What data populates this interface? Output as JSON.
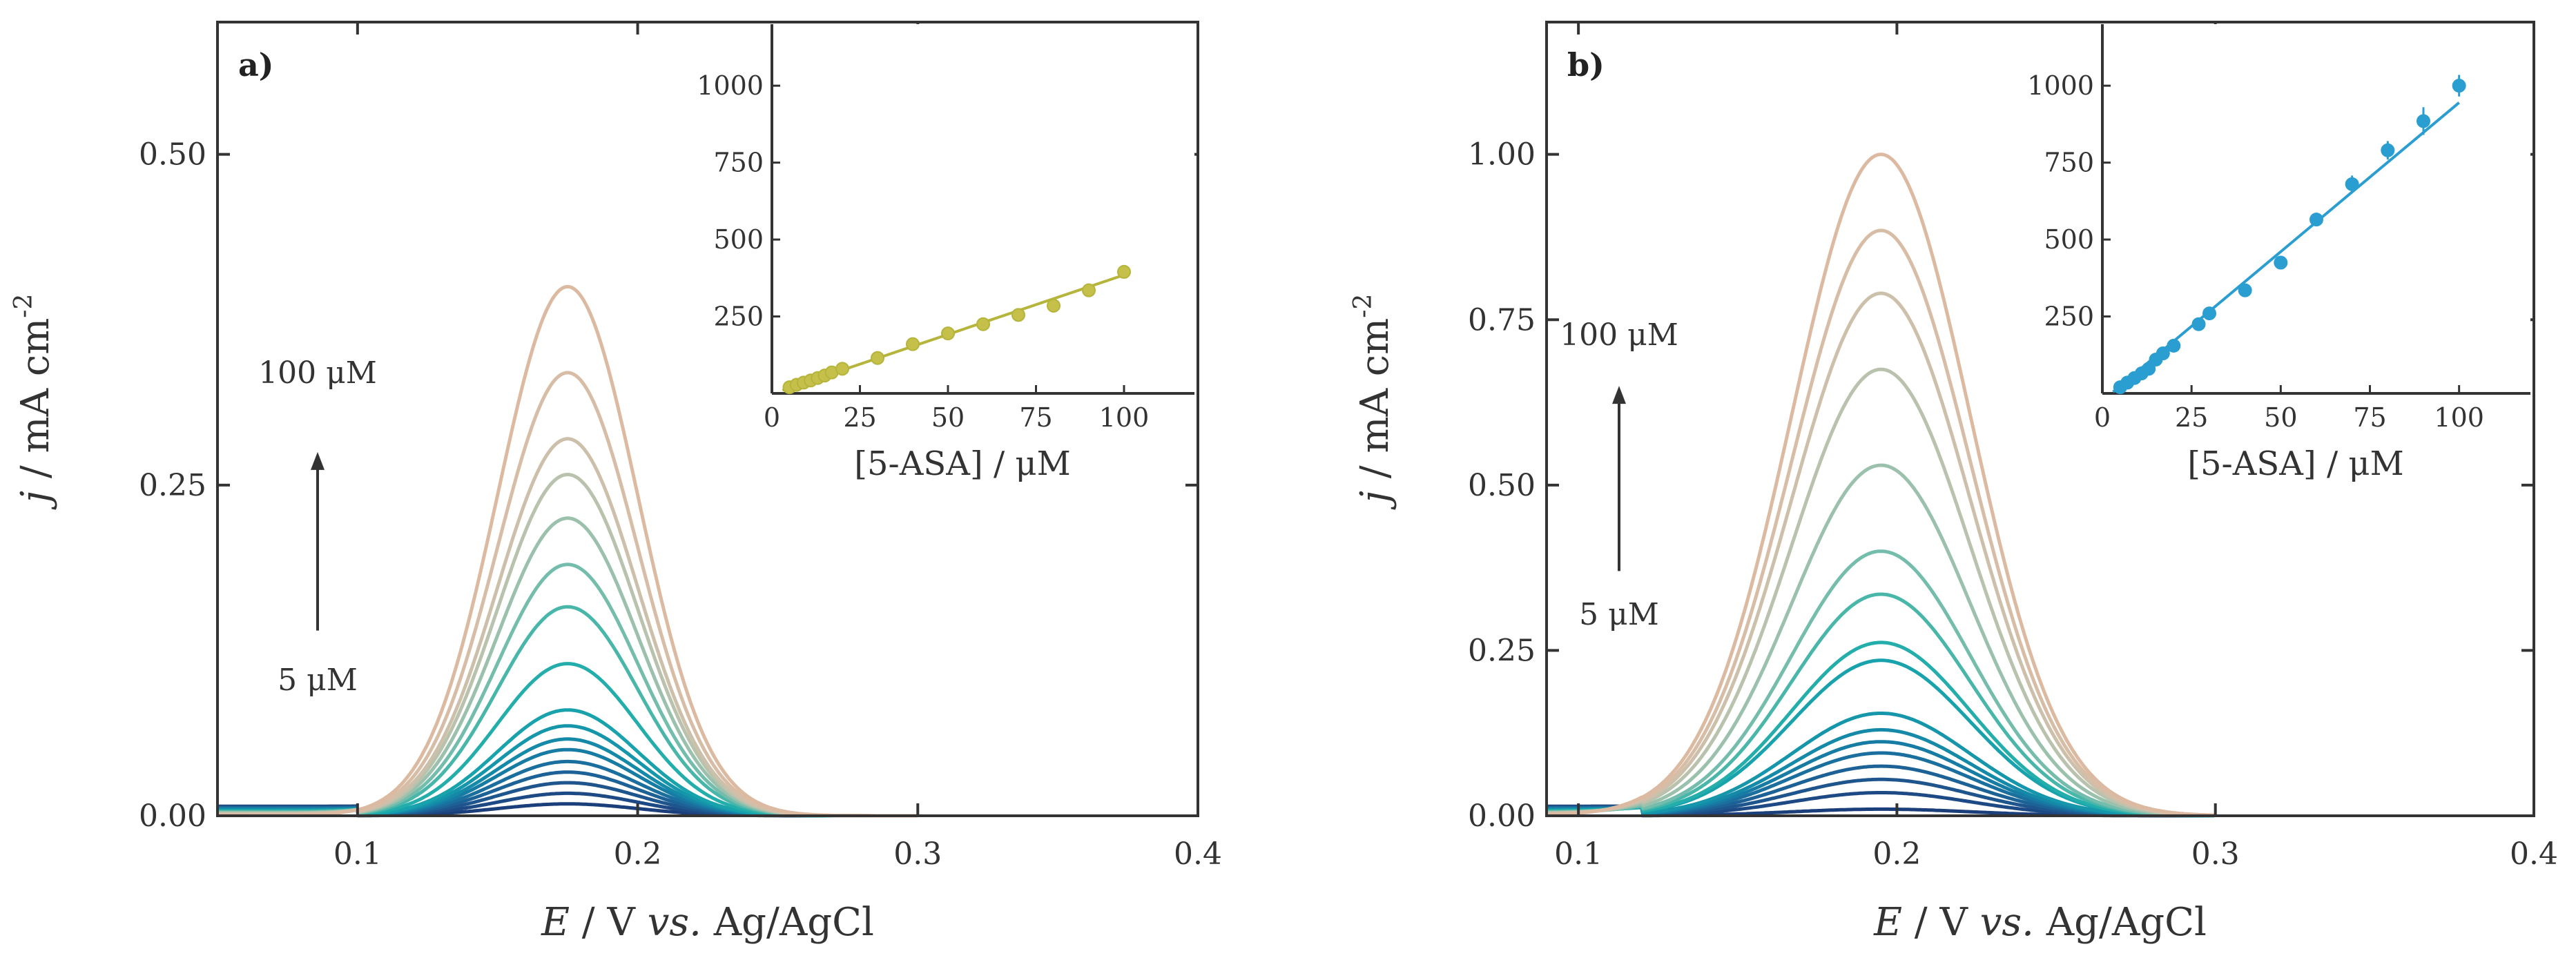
{
  "chart_data": [
    {
      "type": "line",
      "panel_label": "a)",
      "xlabel_parts": [
        "E",
        " / V ",
        "vs.",
        " Ag/AgCl"
      ],
      "ylabel_parts": [
        "j",
        " / mA cm",
        "-2"
      ],
      "xlim": [
        0.05,
        0.4
      ],
      "ylim": [
        0,
        0.6
      ],
      "xticks": [
        0.1,
        0.2,
        0.3,
        0.4
      ],
      "xtick_labels": [
        "0.1",
        "0.2",
        "0.3",
        "0.4"
      ],
      "yticks": [
        0,
        0.25,
        0.5
      ],
      "ytick_labels": [
        "0.00",
        "0.25",
        "0.50"
      ],
      "peak_x": 0.175,
      "peak_sigma": 0.025,
      "onset_x": 0.1,
      "series": [
        {
          "peak": 0.009,
          "color": "#1b3f7a"
        },
        {
          "peak": 0.017,
          "color": "#1d4a84"
        },
        {
          "peak": 0.025,
          "color": "#1e558d"
        },
        {
          "peak": 0.033,
          "color": "#1d6296"
        },
        {
          "peak": 0.041,
          "color": "#1a6f9e"
        },
        {
          "peak": 0.05,
          "color": "#177ca4"
        },
        {
          "peak": 0.058,
          "color": "#1589a8"
        },
        {
          "peak": 0.068,
          "color": "#1596ab"
        },
        {
          "peak": 0.08,
          "color": "#18a2ac"
        },
        {
          "peak": 0.115,
          "color": "#23aeab"
        },
        {
          "peak": 0.158,
          "color": "#49b6aa"
        },
        {
          "peak": 0.19,
          "color": "#74bdac"
        },
        {
          "peak": 0.225,
          "color": "#9bc1ad"
        },
        {
          "peak": 0.258,
          "color": "#b9c2ad"
        },
        {
          "peak": 0.285,
          "color": "#cdc0aa"
        },
        {
          "peak": 0.335,
          "color": "#d8bda6"
        },
        {
          "peak": 0.4,
          "color": "#dcbaa2"
        }
      ],
      "arrow": {
        "from_y": 0.14,
        "to_y": 0.275
      },
      "annotation_top": "100 μM",
      "annotation_bottom": "5 μM",
      "inset": {
        "type": "scatter",
        "xlabel": "[5-ASA] / μM",
        "xlim": [
          0,
          120
        ],
        "ylim": [
          0,
          1200
        ],
        "xticks": [
          0,
          25,
          50,
          75,
          100
        ],
        "xtick_labels": [
          "0",
          "25",
          "50",
          "75",
          "100"
        ],
        "yticks": [
          250,
          500,
          750,
          1000
        ],
        "ytick_labels": [
          "250",
          "500",
          "750",
          "1000"
        ],
        "color": "#b5b43b",
        "point_color": "#c4c04a",
        "x": [
          5,
          7,
          9,
          11,
          13,
          15,
          17,
          20,
          30,
          40,
          50,
          60,
          70,
          80,
          90,
          100
        ],
        "y": [
          20,
          28,
          35,
          42,
          50,
          58,
          68,
          80,
          115,
          160,
          195,
          225,
          255,
          285,
          335,
          395
        ],
        "fit": {
          "x": [
            3,
            100
          ],
          "y": [
            10,
            385
          ]
        }
      }
    },
    {
      "type": "line",
      "panel_label": "b)",
      "xlabel_parts": [
        "E",
        " / V ",
        "vs.",
        " Ag/AgCl"
      ],
      "ylabel_parts": [
        "j",
        " / mA cm",
        "-2"
      ],
      "xlim": [
        0.09,
        0.4
      ],
      "ylim": [
        0,
        1.2
      ],
      "xticks": [
        0.1,
        0.2,
        0.3,
        0.4
      ],
      "xtick_labels": [
        "0.1",
        "0.2",
        "0.3",
        "0.4"
      ],
      "yticks": [
        0,
        0.25,
        0.5,
        0.75,
        1.0
      ],
      "ytick_labels": [
        "0.00",
        "0.25",
        "0.50",
        "0.75",
        "1.00"
      ],
      "peak_x": 0.195,
      "peak_sigma": 0.028,
      "onset_x": 0.12,
      "series": [
        {
          "peak": 0.01,
          "color": "#1b3f7a"
        },
        {
          "peak": 0.035,
          "color": "#1d4a84"
        },
        {
          "peak": 0.055,
          "color": "#1e558d"
        },
        {
          "peak": 0.075,
          "color": "#1d6296"
        },
        {
          "peak": 0.095,
          "color": "#1a6f9e"
        },
        {
          "peak": 0.112,
          "color": "#177ca4"
        },
        {
          "peak": 0.13,
          "color": "#1589a8"
        },
        {
          "peak": 0.155,
          "color": "#1596ab"
        },
        {
          "peak": 0.235,
          "color": "#18a2ac"
        },
        {
          "peak": 0.262,
          "color": "#23aeab"
        },
        {
          "peak": 0.335,
          "color": "#49b6aa"
        },
        {
          "peak": 0.4,
          "color": "#74bdac"
        },
        {
          "peak": 0.53,
          "color": "#9bc1ad"
        },
        {
          "peak": 0.675,
          "color": "#b9c2ad"
        },
        {
          "peak": 0.79,
          "color": "#cdc0aa"
        },
        {
          "peak": 0.885,
          "color": "#d8bda6"
        },
        {
          "peak": 1.0,
          "color": "#dcbaa2"
        }
      ],
      "arrow": {
        "from_y": 0.37,
        "to_y": 0.65
      },
      "annotation_top": "100 μM",
      "annotation_bottom": "5 μM",
      "inset": {
        "type": "scatter",
        "xlabel": "[5-ASA] / μM",
        "xlim": [
          0,
          120
        ],
        "ylim": [
          0,
          1200
        ],
        "xticks": [
          0,
          25,
          50,
          75,
          100
        ],
        "xtick_labels": [
          "0",
          "25",
          "50",
          "75",
          "100"
        ],
        "yticks": [
          250,
          500,
          750,
          1000
        ],
        "ytick_labels": [
          "250",
          "500",
          "750",
          "1000"
        ],
        "color": "#2a9ed1",
        "point_color": "#2a9ed1",
        "x": [
          5,
          7,
          9,
          11,
          13,
          15,
          17,
          20,
          27,
          30,
          40,
          50,
          60,
          70,
          80,
          90,
          100
        ],
        "y": [
          20,
          35,
          50,
          65,
          80,
          110,
          130,
          155,
          225,
          260,
          335,
          425,
          565,
          680,
          790,
          885,
          1000
        ],
        "err": [
          8,
          8,
          8,
          8,
          8,
          10,
          10,
          12,
          15,
          15,
          18,
          20,
          22,
          28,
          30,
          45,
          35
        ],
        "fit": {
          "x": [
            3,
            100
          ],
          "y": [
            5,
            945
          ]
        }
      }
    }
  ]
}
